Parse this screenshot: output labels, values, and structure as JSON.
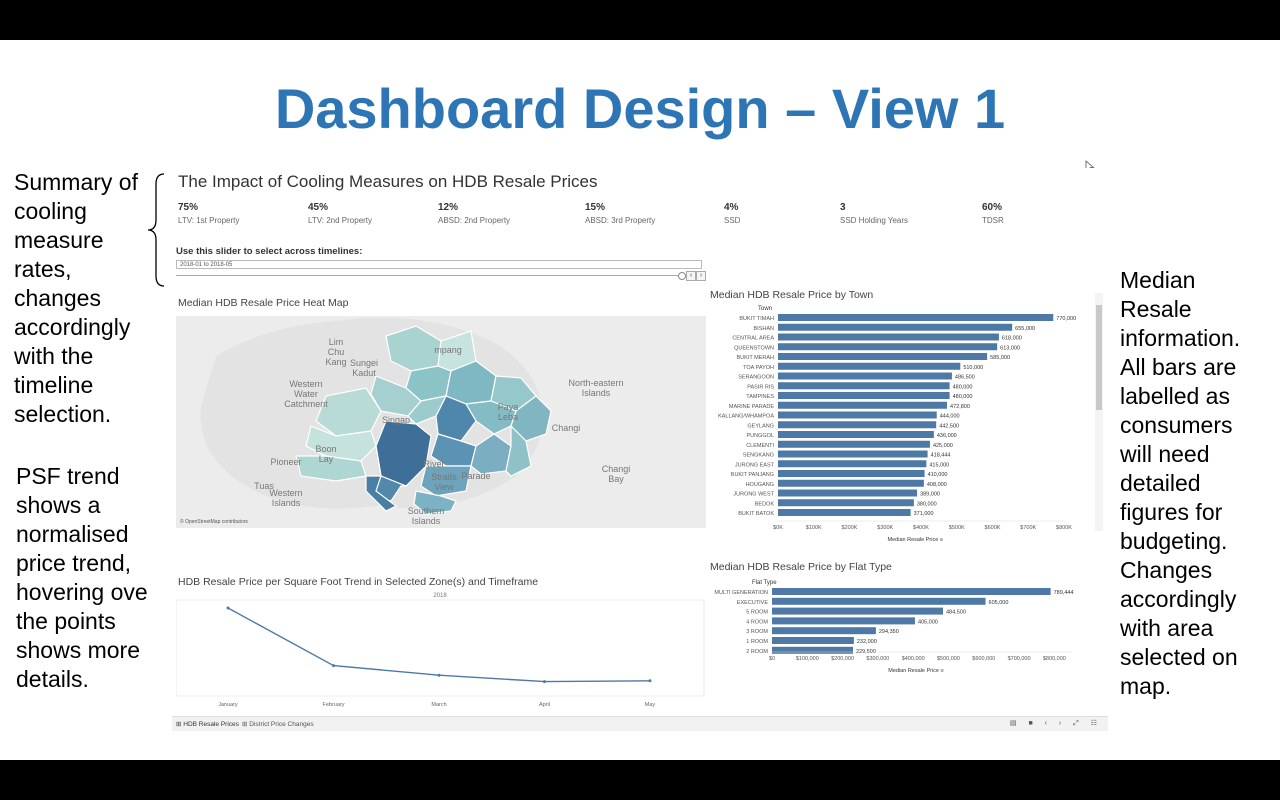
{
  "slide": {
    "title": "Dashboard Design – View 1",
    "left_note_1": "Summary of\ncooling\nmeasure\nrates,\nchanges\naccordingly\nwith the\ntimeline\nselection.",
    "left_note_2": "PSF trend\nshows a\nnormalised\nprice trend,\nhovering ove\nthe points\nshows more\ndetails.",
    "right_note": "Median\nResale\ninformation.\nAll bars are\nlabelled as\nconsumers\nwill need\ndetailed\nfigures for\nbudgeting.\nChanges\naccordingly\nwith area\nselected on\nmap."
  },
  "dashboard": {
    "title": "The Impact of Cooling Measures on HDB Resale Prices",
    "kpis": [
      {
        "value": "75%",
        "label": "LTV: 1st Property"
      },
      {
        "value": "45%",
        "label": "LTV: 2nd Property"
      },
      {
        "value": "12%",
        "label": "ABSD: 2nd Property"
      },
      {
        "value": "15%",
        "label": "ABSD: 3rd Property"
      },
      {
        "value": "4%",
        "label": "SSD"
      },
      {
        "value": "3",
        "label": "SSD Holding Years"
      },
      {
        "value": "60%",
        "label": "TDSR"
      }
    ],
    "slider_label": "Use this slider to select across timelines:",
    "slider_value": "2018-01 to 2018-05",
    "map_title": "Median HDB Resale Price Heat Map",
    "map_credit": "© OpenStreetMap contributors",
    "map_labels": [
      "Lim\nChu\nKang",
      "Sungei\nKadut",
      "Western\nWater\nCatchment",
      "Pioneer",
      "Boon\nLay",
      "Tuas",
      "Western\nIslands",
      "Southern\nIslands",
      "North-eastern\nIslands",
      "Changi",
      "Changi\nBay",
      "Paya\nLeba",
      "Singap",
      "River",
      "Straits\nView",
      "Parade",
      "mpang"
    ],
    "trend_title": "HDB Resale Price per Square Foot Trend in Selected Zone(s) and Timeframe",
    "trend_year": "2018",
    "tabs": [
      "HDB Resale Prices",
      "District Price Changes"
    ],
    "tab_icons": "▤ ■ ‹ › ⤢ ☷"
  },
  "chart_data": [
    {
      "type": "bar",
      "title": "Median HDB Resale Price by Town",
      "category_header": "Town",
      "xlabel": "Median Resale Price",
      "categories": [
        "BUKIT TIMAH",
        "BISHAN",
        "CENTRAL AREA",
        "QUEENSTOWN",
        "BUKIT MERAH",
        "TOA PAYOH",
        "SERANGOON",
        "PASIR RIS",
        "TAMPINES",
        "MARINE PARADE",
        "KALLANG/WHAMPOA",
        "GEYLANG",
        "PUNGGOL",
        "CLEMENTI",
        "SENGKANG",
        "JURONG EAST",
        "BUKIT PANJANG",
        "HOUGANG",
        "JURONG WEST",
        "BEDOK",
        "BUKIT BATOK"
      ],
      "values": [
        770000,
        655000,
        618000,
        613000,
        585000,
        510000,
        486500,
        480000,
        480000,
        472800,
        444000,
        442500,
        436000,
        425000,
        418444,
        415000,
        410000,
        408000,
        389000,
        380000,
        371000
      ],
      "value_labels": [
        "770,000",
        "655,000",
        "618,000",
        "613,000",
        "585,000",
        "510,000",
        "486,500",
        "480,000",
        "480,000",
        "472,800",
        "444,000",
        "442,500",
        "436,000",
        "425,000",
        "418,444",
        "415,000",
        "410,000",
        "408,000",
        "389,000",
        "380,000",
        "371,000"
      ],
      "ticks": [
        "$0K",
        "$100K",
        "$200K",
        "$300K",
        "$400K",
        "$500K",
        "$600K",
        "$700K",
        "$800K"
      ],
      "xlim": [
        0,
        800000
      ],
      "color": "#4E79A7"
    },
    {
      "type": "bar",
      "title": "Median HDB Resale Price by Flat Type",
      "category_header": "Flat Type",
      "xlabel": "Median Resale Price",
      "categories": [
        "MULTI GENERATION",
        "EXECUTIVE",
        "5 ROOM",
        "4 ROOM",
        "3 ROOM",
        "1 ROOM",
        "2 ROOM"
      ],
      "values": [
        789444,
        605000,
        484500,
        405000,
        294350,
        232000,
        229500
      ],
      "value_labels": [
        "789,444",
        "605,000",
        "484,500",
        "405,000",
        "294,350",
        "232,000",
        "229,500"
      ],
      "ticks": [
        "$0",
        "$100,000",
        "$200,000",
        "$300,000",
        "$400,000",
        "$500,000",
        "$600,000",
        "$700,000",
        "$800,000"
      ],
      "xlim": [
        0,
        850000
      ],
      "color": "#4E79A7"
    },
    {
      "type": "line",
      "title": "HDB Resale Price per Square Foot Trend in Selected Zone(s) and Timeframe",
      "categories": [
        "January",
        "February",
        "March",
        "April",
        "May"
      ],
      "values": [
        1.0,
        0.28,
        0.16,
        0.08,
        0.09
      ],
      "color": "#4E79A7"
    }
  ]
}
